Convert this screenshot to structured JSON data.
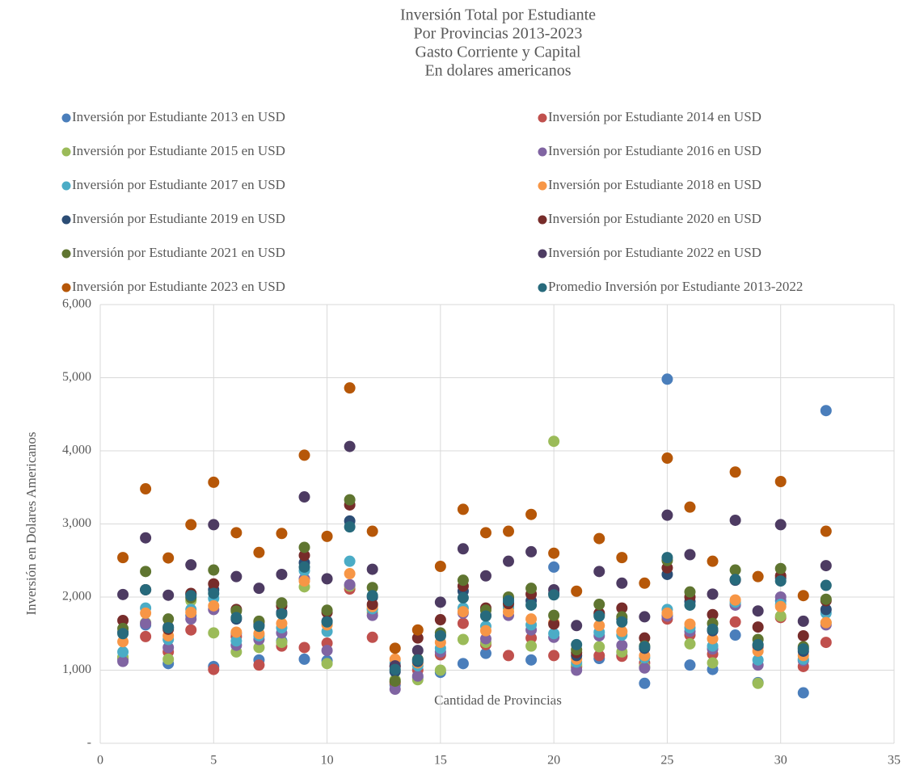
{
  "chart_data": {
    "type": "scatter",
    "title": [
      "Inversión Total por Estudiante",
      "Por Provincias 2013-2023",
      "Gasto Corriente y Capital",
      "En dolares americanos"
    ],
    "x_label": "Cantidad de Provincias",
    "y_label": "Inversión en Dolares Americanos",
    "xlim": [
      0,
      35
    ],
    "xticks": [
      0,
      5,
      10,
      15,
      20,
      25,
      30,
      35
    ],
    "ylim": [
      0,
      6000
    ],
    "yticks": [
      {
        "value": 0,
        "label": "-"
      },
      {
        "value": 1000,
        "label": "1,000"
      },
      {
        "value": 2000,
        "label": "2,000"
      },
      {
        "value": 3000,
        "label": "3,000"
      },
      {
        "value": 4000,
        "label": "4,000"
      },
      {
        "value": 5000,
        "label": "5,000"
      },
      {
        "value": 6000,
        "label": "6,000"
      }
    ],
    "grid": true,
    "legend": "top",
    "x": [
      1,
      2,
      3,
      4,
      5,
      6,
      7,
      8,
      9,
      10,
      11,
      12,
      13,
      14,
      15,
      16,
      17,
      18,
      19,
      20,
      21,
      22,
      23,
      24,
      25,
      26,
      27,
      28,
      29,
      30,
      31,
      32
    ],
    "series": [
      {
        "name": "Inversión por Estudiante 2013 en USD",
        "color": "#4a7ebb",
        "values": [
          1150,
          1620,
          1090,
          1750,
          1050,
          1500,
          1140,
          1400,
          1150,
          1130,
          2160,
          1830,
          800,
          900,
          970,
          1090,
          1230,
          1930,
          1140,
          2410,
          1060,
          1160,
          1200,
          820,
          4980,
          1070,
          1010,
          1480,
          830,
          1950,
          690,
          4550
        ]
      },
      {
        "name": "Inversión por Estudiante 2014 en USD",
        "color": "#c0504d",
        "values": [
          1170,
          1460,
          1250,
          1550,
          1010,
          1460,
          1070,
          1330,
          1310,
          1370,
          2110,
          1450,
          830,
          1000,
          1210,
          1640,
          1350,
          1200,
          1440,
          1200,
          1040,
          1200,
          1190,
          1100,
          1700,
          1480,
          1220,
          1660,
          1320,
          1720,
          1050,
          1380
        ]
      },
      {
        "name": "Inversión por Estudiante 2015 en USD",
        "color": "#9bbb59",
        "values": [
          1180,
          1650,
          1150,
          1950,
          1510,
          1250,
          1310,
          1380,
          2140,
          1090,
          2150,
          1790,
          870,
          870,
          1000,
          1420,
          1380,
          1850,
          1330,
          4130,
          1080,
          1320,
          1250,
          1050,
          1750,
          1360,
          1100,
          1900,
          820,
          1740,
          1300,
          1650
        ]
      },
      {
        "name": "Inversión por Estudiante 2016 en USD",
        "color": "#8064a2",
        "values": [
          1120,
          1640,
          1310,
          1700,
          1830,
          1340,
          1420,
          1510,
          2250,
          1270,
          2170,
          1750,
          740,
          920,
          1250,
          1780,
          1430,
          1750,
          1550,
          1450,
          1000,
          1470,
          1340,
          1030,
          1740,
          1530,
          1290,
          1890,
          1070,
          2000,
          1130,
          1620
        ]
      },
      {
        "name": "Inversión por Estudiante 2017 en USD",
        "color": "#4bacc6",
        "values": [
          1250,
          1850,
          1420,
          1830,
          1980,
          1400,
          1470,
          1580,
          2360,
          1530,
          2490,
          1840,
          1100,
          1060,
          1300,
          1850,
          1600,
          1870,
          1620,
          1500,
          1110,
          1520,
          1480,
          1170,
          1830,
          1580,
          1330,
          1930,
          1140,
          1900,
          1150,
          1780
        ]
      },
      {
        "name": "Inversión por Estudiante 2018 en USD",
        "color": "#f79646",
        "values": [
          1390,
          1780,
          1470,
          1790,
          1880,
          1520,
          1500,
          1640,
          2220,
          1620,
          2320,
          1870,
          1150,
          1100,
          1380,
          1800,
          1540,
          1800,
          1700,
          1650,
          1150,
          1610,
          1530,
          1200,
          1780,
          1630,
          1430,
          1960,
          1260,
          1870,
          1200,
          1650
        ]
      },
      {
        "name": "Inversión por Estudiante 2019 en USD",
        "color": "#2c4d75",
        "values": [
          1520,
          2100,
          1590,
          2040,
          2100,
          1700,
          1620,
          1790,
          2470,
          1670,
          3040,
          2000,
          980,
          1120,
          1480,
          2080,
          1750,
          1980,
          1950,
          2050,
          1200,
          1760,
          1700,
          1300,
          2310,
          1940,
          1540,
          2230,
          1340,
          2260,
          1260,
          1830
        ]
      },
      {
        "name": "Inversión por Estudiante 2020 en USD",
        "color": "#772c2a",
        "values": [
          1680,
          2100,
          1560,
          2050,
          2180,
          1830,
          1660,
          1880,
          2570,
          1790,
          3260,
          1900,
          1050,
          1440,
          1690,
          2150,
          1850,
          1910,
          2040,
          1630,
          1240,
          1780,
          1850,
          1440,
          2400,
          2000,
          1760,
          2240,
          1590,
          2290,
          1470,
          1950
        ]
      },
      {
        "name": "Inversión por Estudiante 2021 en USD",
        "color": "#5f7530",
        "values": [
          1570,
          2350,
          1700,
          1990,
          2370,
          1810,
          1670,
          1920,
          2680,
          1820,
          3330,
          2130,
          850,
          1150,
          1510,
          2230,
          1820,
          2000,
          2120,
          1750,
          1280,
          1900,
          1730,
          1330,
          2500,
          2070,
          1640,
          2370,
          1420,
          2390,
          1320,
          1970
        ]
      },
      {
        "name": "Inversión por Estudiante 2022 en USD",
        "color": "#4d3b62",
        "values": [
          2035,
          2810,
          2025,
          2440,
          2990,
          2280,
          2120,
          2310,
          3370,
          2250,
          4060,
          2380,
          1060,
          1270,
          1930,
          2660,
          2290,
          2490,
          2620,
          2100,
          1610,
          2350,
          2190,
          1730,
          3120,
          2580,
          2040,
          3050,
          1810,
          2990,
          1670,
          2430
        ]
      },
      {
        "name": "Inversión por Estudiante 2023 en USD",
        "color": "#b65708",
        "values": [
          2540,
          3480,
          2535,
          2990,
          3570,
          2880,
          2610,
          2870,
          3940,
          2830,
          4860,
          2900,
          1300,
          1550,
          2420,
          3200,
          2880,
          2900,
          3130,
          2600,
          2080,
          2800,
          2540,
          2190,
          3900,
          3230,
          2490,
          3710,
          2280,
          3580,
          2020,
          2900
        ]
      },
      {
        "name": "Promedio Inversión por Estudiante 2013-2022",
        "color": "#276a7c",
        "values": [
          1500,
          2100,
          1580,
          2020,
          2050,
          1720,
          1600,
          1770,
          2410,
          1660,
          2960,
          2020,
          1010,
          1140,
          1470,
          1990,
          1740,
          1950,
          1890,
          2030,
          1350,
          1740,
          1660,
          1320,
          2540,
          1890,
          1560,
          2240,
          1350,
          2220,
          1290,
          2160
        ]
      }
    ]
  }
}
